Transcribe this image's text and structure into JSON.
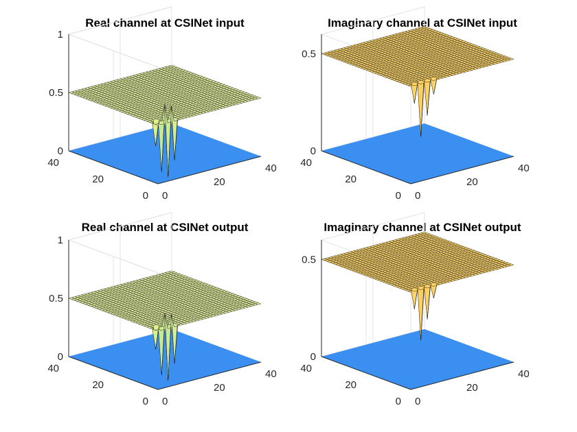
{
  "chart_data": [
    {
      "type": "surface",
      "title": "Real channel at CSINet input",
      "zlim": [
        0,
        1
      ],
      "ztick_labels": [
        "0",
        "0.5",
        "1"
      ],
      "xlim": [
        0,
        40
      ],
      "xtick_labels": [
        "0",
        "20",
        "40"
      ],
      "ylim": [
        0,
        40
      ],
      "ytick_labels": [
        "0",
        "20",
        "40"
      ],
      "grid": true,
      "surface_base": 0.5,
      "surface_colors": [
        "#2c7fb8",
        "#41b6c4",
        "#a1dab4",
        "#d9ef8b",
        "#ffffcc"
      ],
      "floor_color": "#3a8ff0",
      "spikes": [
        {
          "x": 2,
          "y": 1,
          "z": -0.42
        },
        {
          "x": 3,
          "y": 1,
          "z": 0.15
        },
        {
          "x": 4,
          "y": 1,
          "z": -0.48
        },
        {
          "x": 5,
          "y": 1,
          "z": 0.12
        },
        {
          "x": 6,
          "y": 1,
          "z": -0.35
        },
        {
          "x": 1,
          "y": 2,
          "z": -0.2
        },
        {
          "x": 2,
          "y": 3,
          "z": -0.15
        }
      ]
    },
    {
      "type": "surface",
      "title": "Imaginary channel at CSINet input",
      "zlim": [
        0,
        0.6
      ],
      "ztick_labels": [
        "0",
        "0.5"
      ],
      "xlim": [
        0,
        40
      ],
      "xtick_labels": [
        "0",
        "20",
        "40"
      ],
      "ylim": [
        0,
        40
      ],
      "ytick_labels": [
        "0",
        "20",
        "40"
      ],
      "grid": true,
      "surface_base": 0.5,
      "surface_colors": [
        "#f6a13a",
        "#fbc24a",
        "#ffe07a"
      ],
      "floor_color": "#3a8ff0",
      "spikes": [
        {
          "x": 1,
          "y": 38,
          "z": 0.08
        },
        {
          "x": 2,
          "y": 1,
          "z": -0.1
        },
        {
          "x": 4,
          "y": 1,
          "z": -0.28
        },
        {
          "x": 6,
          "y": 1,
          "z": -0.18
        },
        {
          "x": 8,
          "y": 1,
          "z": -0.08
        }
      ]
    },
    {
      "type": "surface",
      "title": "Real channel at CSINet output",
      "zlim": [
        0,
        1
      ],
      "ztick_labels": [
        "0",
        "0.5",
        "1"
      ],
      "xlim": [
        0,
        40
      ],
      "xtick_labels": [
        "0",
        "20",
        "40"
      ],
      "ylim": [
        0,
        40
      ],
      "ytick_labels": [
        "0",
        "20",
        "40"
      ],
      "grid": true,
      "surface_base": 0.5,
      "surface_colors": [
        "#2c7fb8",
        "#41b6c4",
        "#a1dab4",
        "#d9ef8b",
        "#ffffcc"
      ],
      "floor_color": "#3a8ff0",
      "spikes": [
        {
          "x": 2,
          "y": 1,
          "z": -0.4
        },
        {
          "x": 3,
          "y": 1,
          "z": 0.12
        },
        {
          "x": 4,
          "y": 1,
          "z": -0.46
        },
        {
          "x": 5,
          "y": 1,
          "z": 0.1
        },
        {
          "x": 6,
          "y": 1,
          "z": -0.33
        },
        {
          "x": 1,
          "y": 2,
          "z": -0.18
        },
        {
          "x": 2,
          "y": 3,
          "z": -0.14
        }
      ]
    },
    {
      "type": "surface",
      "title": "Imaginary channel at CSINet output",
      "zlim": [
        0,
        0.6
      ],
      "ztick_labels": [
        "0",
        "0.5"
      ],
      "xlim": [
        0,
        40
      ],
      "xtick_labels": [
        "0",
        "20",
        "40"
      ],
      "ylim": [
        0,
        40
      ],
      "ytick_labels": [
        "0",
        "20",
        "40"
      ],
      "grid": true,
      "surface_base": 0.5,
      "surface_colors": [
        "#f6a13a",
        "#fbc24a",
        "#ffe07a"
      ],
      "floor_color": "#3a8ff0",
      "spikes": [
        {
          "x": 1,
          "y": 38,
          "z": 0.08
        },
        {
          "x": 2,
          "y": 1,
          "z": -0.1
        },
        {
          "x": 4,
          "y": 1,
          "z": -0.27
        },
        {
          "x": 6,
          "y": 1,
          "z": -0.17
        },
        {
          "x": 8,
          "y": 1,
          "z": -0.07
        }
      ]
    }
  ]
}
